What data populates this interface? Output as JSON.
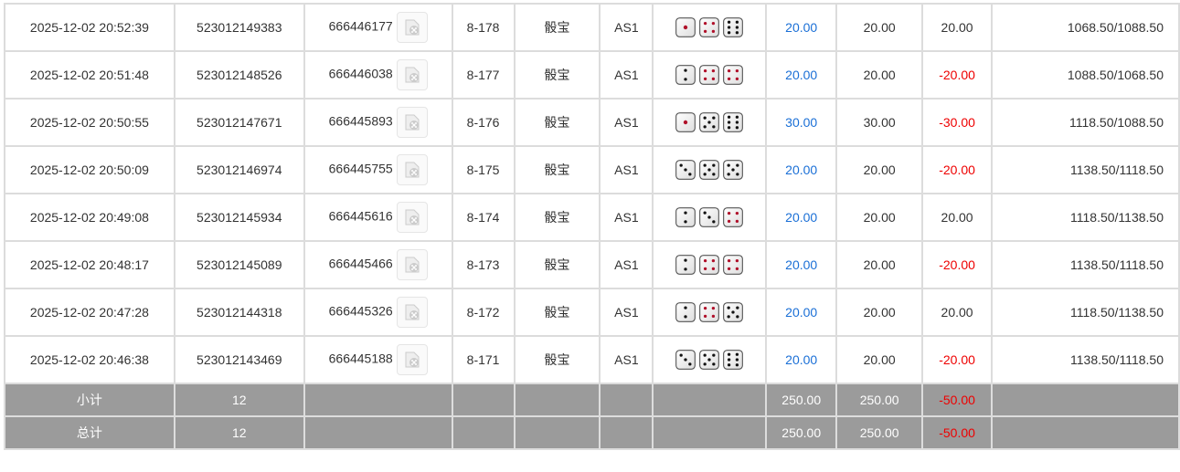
{
  "rows": [
    {
      "time": "2025-12-02 20:52:39",
      "order": "523012149383",
      "round": "666446177",
      "table": "8-178",
      "game": "骰宝",
      "bet": "AS1",
      "dice": [
        1,
        4,
        6
      ],
      "bet_amt": "20.00",
      "valid": "20.00",
      "win": "20.00",
      "balance": "1068.50/1088.50"
    },
    {
      "time": "2025-12-02 20:51:48",
      "order": "523012148526",
      "round": "666446038",
      "table": "8-177",
      "game": "骰宝",
      "bet": "AS1",
      "dice": [
        2,
        4,
        4
      ],
      "bet_amt": "20.00",
      "valid": "20.00",
      "win": "-20.00",
      "balance": "1088.50/1068.50"
    },
    {
      "time": "2025-12-02 20:50:55",
      "order": "523012147671",
      "round": "666445893",
      "table": "8-176",
      "game": "骰宝",
      "bet": "AS1",
      "dice": [
        1,
        5,
        6
      ],
      "bet_amt": "30.00",
      "valid": "30.00",
      "win": "-30.00",
      "balance": "1118.50/1088.50"
    },
    {
      "time": "2025-12-02 20:50:09",
      "order": "523012146974",
      "round": "666445755",
      "table": "8-175",
      "game": "骰宝",
      "bet": "AS1",
      "dice": [
        3,
        5,
        5
      ],
      "bet_amt": "20.00",
      "valid": "20.00",
      "win": "-20.00",
      "balance": "1138.50/1118.50"
    },
    {
      "time": "2025-12-02 20:49:08",
      "order": "523012145934",
      "round": "666445616",
      "table": "8-174",
      "game": "骰宝",
      "bet": "AS1",
      "dice": [
        2,
        3,
        4
      ],
      "bet_amt": "20.00",
      "valid": "20.00",
      "win": "20.00",
      "balance": "1118.50/1138.50"
    },
    {
      "time": "2025-12-02 20:48:17",
      "order": "523012145089",
      "round": "666445466",
      "table": "8-173",
      "game": "骰宝",
      "bet": "AS1",
      "dice": [
        2,
        4,
        4
      ],
      "bet_amt": "20.00",
      "valid": "20.00",
      "win": "-20.00",
      "balance": "1138.50/1118.50"
    },
    {
      "time": "2025-12-02 20:47:28",
      "order": "523012144318",
      "round": "666445326",
      "table": "8-172",
      "game": "骰宝",
      "bet": "AS1",
      "dice": [
        2,
        4,
        5
      ],
      "bet_amt": "20.00",
      "valid": "20.00",
      "win": "20.00",
      "balance": "1118.50/1138.50"
    },
    {
      "time": "2025-12-02 20:46:38",
      "order": "523012143469",
      "round": "666445188",
      "table": "8-171",
      "game": "骰宝",
      "bet": "AS1",
      "dice": [
        3,
        5,
        6
      ],
      "bet_amt": "20.00",
      "valid": "20.00",
      "win": "-20.00",
      "balance": "1138.50/1118.50"
    }
  ],
  "subtotal": {
    "label": "小计",
    "count": "12",
    "bet_amt": "250.00",
    "valid": "250.00",
    "win": "-50.00"
  },
  "total": {
    "label": "总计",
    "count": "12",
    "bet_amt": "250.00",
    "valid": "250.00",
    "win": "-50.00"
  },
  "colors": {
    "positive_bet": "#1a6fd6",
    "negative": "#e00000",
    "summary_bg": "#9b9b9b",
    "dice_red_pip": "#b0102a"
  },
  "icons": {
    "video": "video-replay-icon",
    "dice": "dice-icon"
  }
}
